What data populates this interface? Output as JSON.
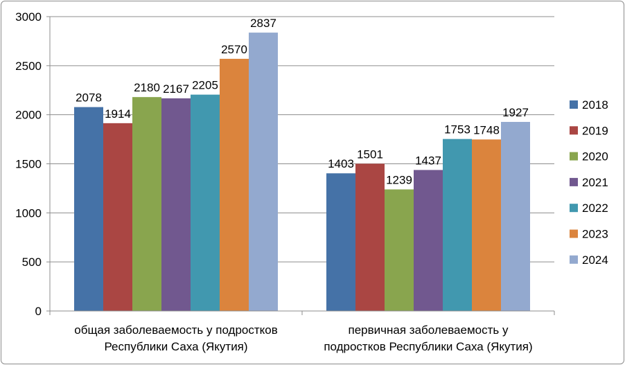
{
  "chart_data": {
    "type": "bar",
    "categories": [
      "общая заболеваемость у подростков Республики Саха (Якутия)",
      "первичная заболеваемость у подростков Республики Саха (Якутия)"
    ],
    "category_label_lines": [
      [
        "общая заболеваемость у подростков",
        "Республики Саха (Якутия)"
      ],
      [
        "первичная заболеваемость у",
        "подростков Республики Саха (Якутия)"
      ]
    ],
    "series": [
      {
        "name": "2018",
        "values": [
          2078,
          1403
        ],
        "color": "#4572a7"
      },
      {
        "name": "2019",
        "values": [
          1914,
          1501
        ],
        "color": "#aa4643"
      },
      {
        "name": "2020",
        "values": [
          2180,
          1239
        ],
        "color": "#89a54e"
      },
      {
        "name": "2021",
        "values": [
          2167,
          1437
        ],
        "color": "#71588f"
      },
      {
        "name": "2022",
        "values": [
          2205,
          1753
        ],
        "color": "#4198af"
      },
      {
        "name": "2023",
        "values": [
          2570,
          1748
        ],
        "color": "#db843d"
      },
      {
        "name": "2024",
        "values": [
          2837,
          1927
        ],
        "color": "#93a9cf"
      }
    ],
    "ylim": [
      0,
      3000
    ],
    "yticks": [
      0,
      500,
      1000,
      1500,
      2000,
      2500,
      3000
    ],
    "grid": true,
    "legend_position": "right",
    "data_labels": true
  }
}
